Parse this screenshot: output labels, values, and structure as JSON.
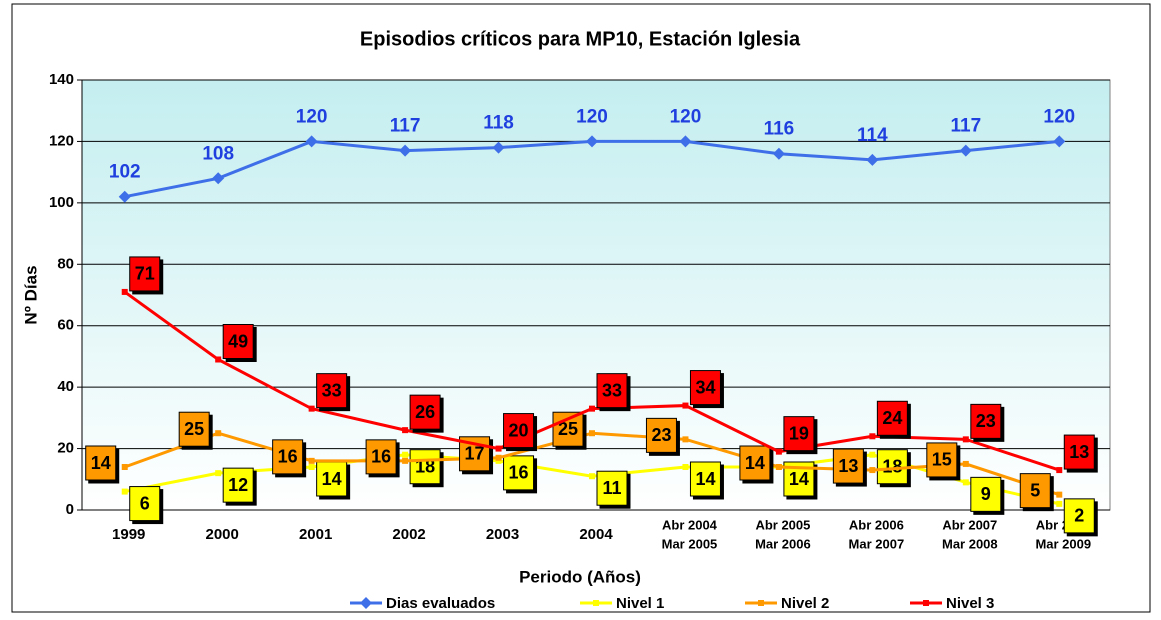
{
  "chart_data": {
    "type": "line",
    "title": "Episodios críticos para MP10, Estación Iglesia",
    "x_label": "Periodo (Años)",
    "y_label": "Nº Días",
    "categories": [
      [
        "1999"
      ],
      [
        "2000"
      ],
      [
        "2001"
      ],
      [
        "2002"
      ],
      [
        "2003"
      ],
      [
        "2004"
      ],
      [
        "Abr 2004",
        "Mar 2005"
      ],
      [
        "Abr 2005",
        "Mar 2006"
      ],
      [
        "Abr 2006",
        "Mar 2007"
      ],
      [
        "Abr 2007",
        "Mar 2008"
      ],
      [
        "Abr 2008",
        "Mar 2009"
      ]
    ],
    "series": [
      {
        "name": "Dias evaluados",
        "color": "#3f6fe8",
        "values": [
          102,
          108,
          120,
          117,
          118,
          120,
          120,
          116,
          114,
          117,
          120
        ]
      },
      {
        "name": "Nivel 1",
        "color": "#ffff00",
        "values": [
          6,
          12,
          14,
          18,
          16,
          11,
          14,
          14,
          18,
          9,
          2
        ]
      },
      {
        "name": "Nivel 2",
        "color": "#ff9900",
        "values": [
          14,
          25,
          16,
          16,
          17,
          25,
          23,
          14,
          13,
          15,
          5
        ]
      },
      {
        "name": "Nivel 3",
        "color": "#ff0000",
        "values": [
          71,
          49,
          33,
          26,
          20,
          33,
          34,
          19,
          24,
          23,
          13
        ]
      }
    ],
    "ylim": [
      0,
      140
    ],
    "yticks": [
      0,
      20,
      40,
      60,
      80,
      100,
      120,
      140
    ],
    "grid": true,
    "legend": "bottom"
  }
}
